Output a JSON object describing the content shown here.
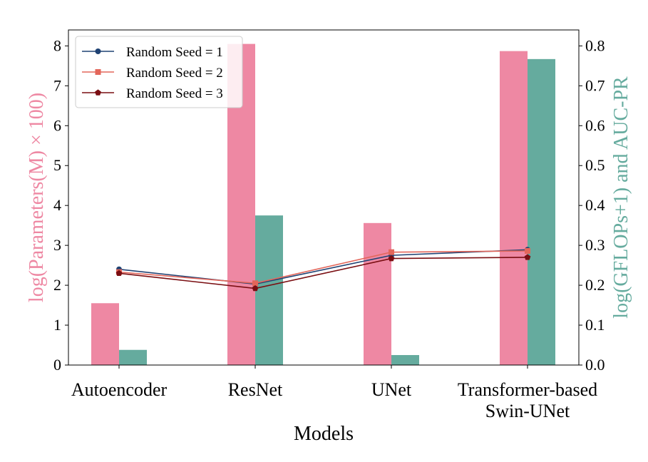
{
  "chart_data": {
    "type": "bar",
    "categories": [
      "Autoencoder",
      "ResNet",
      "UNet",
      [
        "Transformer-based",
        "Swin-UNet"
      ]
    ],
    "xlabel": "Models",
    "ylabel_left": "log(Parameters(M) × 100)",
    "ylabel_right": "log(GFLOPs+1) and AUC-PR",
    "ylim_left": [
      0,
      8.4
    ],
    "ylim_right": [
      0,
      0.84
    ],
    "yticks_left": [
      "0",
      "1",
      "2",
      "3",
      "4",
      "5",
      "6",
      "7",
      "8"
    ],
    "yticks_right": [
      "0.0",
      "0.1",
      "0.2",
      "0.3",
      "0.4",
      "0.5",
      "0.6",
      "0.7",
      "0.8"
    ],
    "bars": [
      {
        "axis": "left",
        "color": "#ee88a3",
        "values": [
          1.55,
          8.05,
          3.56,
          7.87
        ]
      },
      {
        "axis": "right",
        "color": "#65ab9e",
        "values": [
          0.038,
          0.375,
          0.025,
          0.767
        ]
      }
    ],
    "lines": [
      {
        "name": "Random Seed = 1",
        "axis": "right",
        "color": "#1f4273",
        "marker": "circle",
        "values": [
          0.24,
          0.203,
          0.275,
          0.289
        ]
      },
      {
        "name": "Random Seed = 2",
        "axis": "right",
        "color": "#e3665a",
        "marker": "square",
        "values": [
          0.233,
          0.205,
          0.283,
          0.286
        ]
      },
      {
        "name": "Random Seed = 3",
        "axis": "right",
        "color": "#7a0e12",
        "marker": "pentagon",
        "values": [
          0.23,
          0.192,
          0.267,
          0.27
        ]
      }
    ],
    "legend": "top-left",
    "grid": false
  }
}
